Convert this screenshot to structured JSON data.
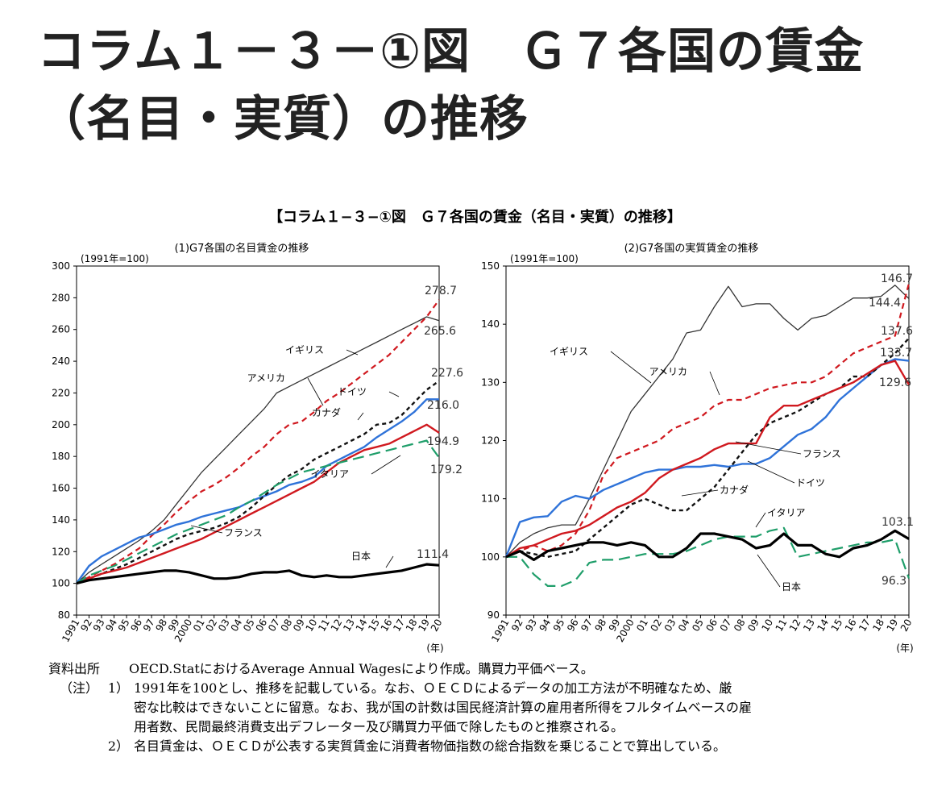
{
  "slide_title": "コラム１－３－①図　Ｇ７各国の賃金（名目・実質）の推移",
  "figure_heading": "【コラム１−３−①図　Ｇ７各国の賃金（名目・実質）の推移】",
  "x_categories": [
    "1991",
    "92",
    "93",
    "94",
    "95",
    "96",
    "97",
    "98",
    "99",
    "2000",
    "01",
    "02",
    "03",
    "04",
    "05",
    "06",
    "07",
    "08",
    "09",
    "10",
    "11",
    "12",
    "13",
    "14",
    "15",
    "16",
    "17",
    "18",
    "19",
    "20"
  ],
  "x_unit": "(年)",
  "colors": {
    "イギリス": "#333333",
    "アメリカ": "#d0191f",
    "ドイツ": "#2f73d9",
    "カナダ": "#111111",
    "フランス": "#d0191f",
    "イタリア": "#1f9e6a",
    "日本": "#000000"
  },
  "chart_data": [
    {
      "type": "line",
      "title": "(1)G7各国の名目賃金の推移",
      "base_note": "(1991年=100)",
      "ylim": [
        80,
        300
      ],
      "yticks": [
        80,
        100,
        120,
        140,
        160,
        180,
        200,
        220,
        240,
        260,
        280,
        300
      ],
      "series": [
        {
          "name": "イギリス",
          "values": [
            100,
            107,
            112,
            117,
            122,
            127,
            133,
            140,
            150,
            160,
            170,
            178,
            186,
            194,
            202,
            210,
            220,
            224,
            228,
            232,
            236,
            240,
            244,
            248,
            252,
            256,
            260,
            264,
            268,
            265.6
          ]
        },
        {
          "name": "アメリカ",
          "values": [
            100,
            104,
            108,
            112,
            117,
            122,
            130,
            137,
            145,
            152,
            158,
            162,
            167,
            173,
            180,
            186,
            194,
            200,
            202,
            208,
            215,
            220,
            226,
            232,
            238,
            244,
            252,
            260,
            268,
            278.7
          ]
        },
        {
          "name": "ドイツ",
          "values": [
            100,
            111,
            117,
            121,
            125,
            129,
            131,
            134,
            137,
            139,
            142,
            144,
            146,
            148,
            152,
            155,
            158,
            162,
            164,
            167,
            174,
            178,
            182,
            186,
            192,
            197,
            202,
            208,
            216,
            216.0
          ]
        },
        {
          "name": "カナダ",
          "values": [
            100,
            103,
            106,
            109,
            112,
            116,
            120,
            124,
            128,
            131,
            133,
            135,
            138,
            142,
            148,
            155,
            162,
            168,
            172,
            178,
            182,
            186,
            190,
            194,
            200,
            201,
            206,
            214,
            222,
            227.6
          ]
        },
        {
          "name": "フランス",
          "values": [
            100,
            103,
            106,
            108,
            110,
            113,
            116,
            119,
            122,
            125,
            128,
            132,
            136,
            140,
            144,
            148,
            152,
            156,
            160,
            164,
            170,
            176,
            180,
            184,
            186,
            188,
            192,
            196,
            200,
            194.9
          ]
        },
        {
          "name": "イタリア",
          "values": [
            100,
            105,
            108,
            111,
            115,
            119,
            123,
            127,
            131,
            134,
            137,
            140,
            143,
            148,
            152,
            157,
            162,
            166,
            170,
            172,
            174,
            176,
            178,
            180,
            182,
            184,
            186,
            188,
            190,
            179.2
          ]
        },
        {
          "name": "日本",
          "values": [
            100,
            102,
            103,
            104,
            105,
            106,
            107,
            108,
            108,
            107,
            105,
            103,
            103,
            104,
            106,
            107,
            107,
            108,
            105,
            104,
            105,
            104,
            104,
            105,
            106,
            107,
            108,
            110,
            112,
            111.4
          ]
        }
      ],
      "annotations": {
        "end_labels": [
          "278.7",
          "265.6",
          "227.6",
          "216.0",
          "194.9",
          "179.2",
          "111.4"
        ],
        "series_labels": [
          "イギリス",
          "アメリカ",
          "ドイツ",
          "カナダ",
          "イタリア",
          "フランス",
          "日本"
        ]
      }
    },
    {
      "type": "line",
      "title": "(2)G7各国の実質賃金の推移",
      "base_note": "(1991年=100)",
      "ylim": [
        90,
        150
      ],
      "yticks": [
        90,
        100,
        110,
        120,
        130,
        140,
        150
      ],
      "series": [
        {
          "name": "イギリス",
          "values": [
            100,
            102.5,
            104,
            105,
            105.5,
            105.5,
            110,
            115,
            120,
            125,
            128,
            131,
            134,
            138.5,
            139,
            143,
            146.5,
            143,
            143.5,
            143.5,
            141,
            139,
            141,
            141.5,
            143,
            144.5,
            144.5,
            144.8,
            146.7,
            144.4
          ]
        },
        {
          "name": "アメリカ",
          "values": [
            100,
            101,
            102,
            101,
            102,
            104,
            108,
            114,
            117,
            118,
            119,
            120,
            122,
            123,
            124,
            126,
            127,
            127,
            128,
            129,
            129.5,
            130,
            130,
            131,
            133,
            135,
            136,
            137,
            138,
            147
          ]
        },
        {
          "name": "ドイツ",
          "values": [
            100,
            106,
            106.8,
            107,
            109.5,
            110.5,
            110,
            111.5,
            112.5,
            113.5,
            114.5,
            115,
            115,
            115.5,
            115.5,
            115.8,
            115.5,
            116,
            116,
            117,
            119,
            121,
            122,
            124,
            127,
            129,
            131,
            133,
            134,
            133.7
          ]
        },
        {
          "name": "カナダ",
          "values": [
            100,
            101,
            100.5,
            100,
            100.5,
            101,
            103,
            105,
            107,
            109,
            110,
            109,
            108,
            108,
            110,
            112,
            115,
            118,
            121,
            123,
            124,
            125,
            126.5,
            128,
            129,
            131,
            131,
            133,
            135,
            137.6
          ]
        },
        {
          "name": "フランス",
          "values": [
            100,
            101.5,
            102,
            103,
            104,
            104.5,
            105.5,
            107,
            108.5,
            109.5,
            111,
            113.5,
            115,
            116,
            117,
            118.5,
            119.5,
            119.5,
            119.5,
            124,
            126,
            126,
            127,
            128,
            129,
            130,
            131.5,
            133,
            133.7,
            129.6
          ]
        },
        {
          "name": "イタリア",
          "values": [
            100,
            100,
            97,
            95,
            95,
            96,
            99,
            99.5,
            99.5,
            100,
            100.5,
            100.5,
            100.5,
            101,
            102,
            103,
            103.5,
            103.5,
            103.5,
            104.5,
            105,
            100,
            100.5,
            101,
            101.5,
            102,
            102.5,
            102.5,
            103,
            96.3
          ]
        },
        {
          "name": "日本",
          "values": [
            100,
            101,
            99.5,
            101,
            101.5,
            102,
            102.5,
            102.5,
            102,
            102.5,
            102,
            100,
            100,
            101.5,
            104,
            104,
            103.5,
            103,
            101.5,
            102,
            104,
            102,
            102,
            100.5,
            100,
            101.5,
            102,
            103,
            104.5,
            103.1
          ]
        }
      ],
      "annotations": {
        "end_labels": [
          "146.7",
          "144.4",
          "137.6",
          "133.7",
          "129.6",
          "103.1",
          "96.3"
        ],
        "series_labels": [
          "イギリス",
          "アメリカ",
          "フランス",
          "ドイツ",
          "カナダ",
          "イタリア",
          "日本"
        ]
      }
    }
  ],
  "notes": {
    "source_head": "資料出所",
    "source_text": "OECD.StatにおけるAverage Annual Wagesにより作成。購買力平価ベース。",
    "note_head": "（注）",
    "note1_num": "1）",
    "note1_line1": "1991年を100とし、推移を記載している。なお、ＯＥＣＤによるデータの加工方法が不明確なため、厳",
    "note1_line2": "密な比較はできないことに留意。なお、我が国の計数は国民経済計算の雇用者所得をフルタイムベースの雇",
    "note1_line3": "用者数、民間最終消費支出デフレーター及び購買力平価で除したものと推察される。",
    "note2_num": "2）",
    "note2_text": "名目賃金は、ＯＥＣＤが公表する実質賃金に消費者物価指数の総合指数を乗じることで算出している。"
  }
}
